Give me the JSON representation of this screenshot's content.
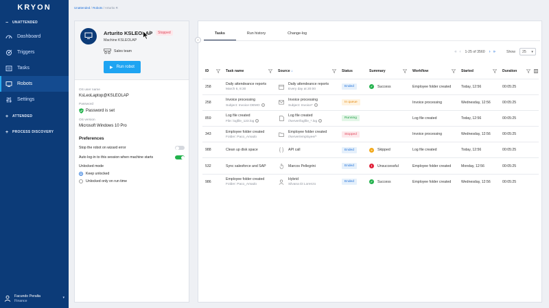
{
  "app": {
    "logo": "KRYON"
  },
  "sidebar": {
    "sections": [
      {
        "label": "UNATTENDED",
        "symbol": "−"
      },
      {
        "label": "ATTENDED",
        "symbol": "+"
      },
      {
        "label": "PROCESS DISCOVERY",
        "symbol": "+"
      }
    ],
    "items": [
      {
        "label": "Dashboard",
        "icon": "dashboard-icon"
      },
      {
        "label": "Triggers",
        "icon": "triggers-icon"
      },
      {
        "label": "Tasks",
        "icon": "tasks-icon"
      },
      {
        "label": "Robots",
        "icon": "robots-icon",
        "active": true
      },
      {
        "label": "Settings",
        "icon": "settings-icon"
      }
    ],
    "user": {
      "name": "Facundo Peralta",
      "role": "Finance"
    }
  },
  "breadcrumb": {
    "part1": "Unattended",
    "sep": "/",
    "part2": "Robots",
    "part3": "Arturito R"
  },
  "robot": {
    "name": "Arturito KSLEOLAP",
    "status": "Stopped",
    "machine": "Machine KSLEOLAP",
    "team": "Sales team",
    "run_label": "Run robot",
    "os_user_label": "OS user name",
    "os_user_value": "KsLeoLaptop@KSLEOLAP",
    "password_label": "Password",
    "password_value": "Password is set",
    "os_version_label": "OS version",
    "os_version_value": "Microsoft Windows 10 Pro",
    "preferences_title": "Preferences",
    "pref1": "Stop the robot on wizard error",
    "pref2": "Auto log-in to this session when machine starts",
    "unlock_label": "Unlocked mode",
    "radio1": "Keep unlocked",
    "radio2": "Unlocked only on run time"
  },
  "tabs": [
    "Tasks",
    "Run history",
    "Change-log"
  ],
  "pager": {
    "range": "1-25 of 3560",
    "show_label": "Show",
    "page_size": "25"
  },
  "table": {
    "headers": [
      "ID",
      "Task name",
      "Source",
      "Status",
      "Summary",
      "Workflow",
      "Started",
      "Duration"
    ],
    "rows": [
      {
        "id": "258",
        "task": "Daily attendeance reports",
        "task_sub": "March 6, 8:30",
        "source": "Daily attendeance reports",
        "source_sub": "Every day at 20:00",
        "source_icon": "calendar-icon",
        "status": "Ended",
        "summary": "Success",
        "workflow": "Employee folder created",
        "started": "Today, 12:56",
        "duration": "00:05:25"
      },
      {
        "id": "258",
        "task": "Invoice processing",
        "task_sub": "Subject: Invoice DEMO",
        "source": "Invoice processing",
        "source_sub": "Subject: Invoice*",
        "source_icon": "email-icon",
        "status": "In queue",
        "summary": "",
        "workflow": "Invoice processing",
        "started": "Wednesday, 12:56",
        "duration": "00:05:25"
      },
      {
        "id": "859",
        "task": "Log file created",
        "task_sub": "File: logfile_123.log",
        "source": "Log file created",
        "source_sub": "//server/logfile_*.log",
        "source_icon": "file-icon",
        "status": "Running",
        "summary": "",
        "workflow": "Log file created",
        "started": "Today, 12:56",
        "duration": "00:05:25"
      },
      {
        "id": "343",
        "task": "Employee folder created",
        "task_sub": "Folder: Paco_Amado",
        "source": "Employee folder created",
        "source_sub": "//server/employee/*",
        "source_icon": "folder-icon",
        "status": "Stopped",
        "summary": "",
        "workflow": "Invoice processing",
        "started": "Wednesday, 12:56",
        "duration": "00:05:25"
      },
      {
        "id": "988",
        "task": "Clean up disk space",
        "task_sub": "",
        "source": "API call",
        "source_sub": "",
        "source_icon": "api-icon",
        "status": "Ended",
        "summary": "Skipped",
        "workflow": "Log file created",
        "started": "Today, 12:56",
        "duration": "00:05:25"
      },
      {
        "id": "532",
        "task": "Sync salesforce and SAP",
        "task_sub": "",
        "source": "Marcos Pellegrini",
        "source_sub": "",
        "source_icon": "hand-icon",
        "status": "Ended",
        "summary": "Unsuccessful",
        "workflow": "Employee folder created",
        "started": "Monday, 12:56",
        "duration": "00:05:25"
      },
      {
        "id": "986",
        "task": "Employee folder created",
        "task_sub": "Folder: Paco_Amado",
        "source": "Hybrid",
        "source_sub": "Silvana Di Lorenzo",
        "source_icon": "user-icon",
        "status": "Ended",
        "summary": "Success",
        "workflow": "Employee folder created",
        "started": "Wednesday, 12:56",
        "duration": "00:05:25"
      }
    ]
  }
}
